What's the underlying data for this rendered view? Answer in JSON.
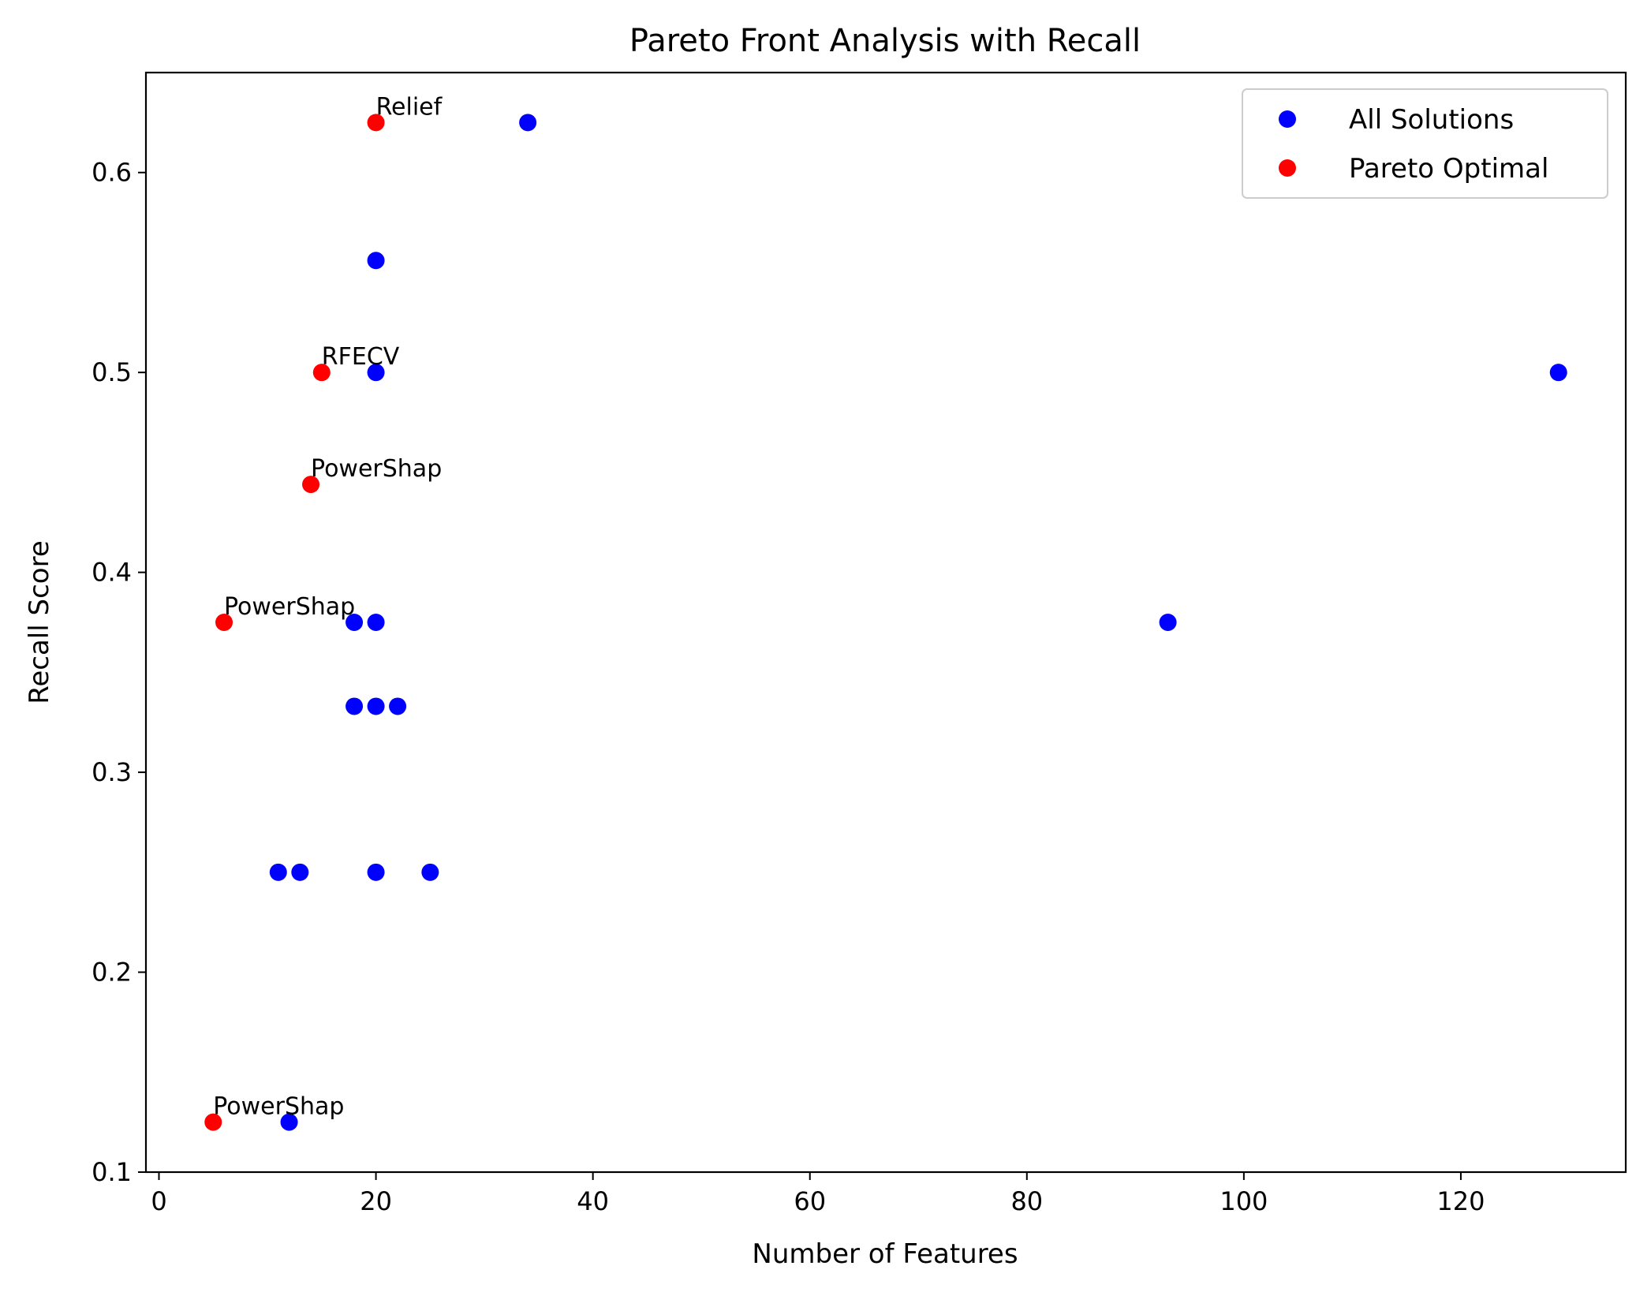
{
  "chart_data": {
    "type": "scatter",
    "title": "Pareto Front Analysis with Recall",
    "xlabel": "Number of Features",
    "ylabel": "Recall Score",
    "xlim": [
      -1.2,
      135.2
    ],
    "ylim": [
      0.1,
      0.65
    ],
    "xticks": [
      {
        "value": 0,
        "label": "0"
      },
      {
        "value": 20,
        "label": "20"
      },
      {
        "value": 40,
        "label": "40"
      },
      {
        "value": 60,
        "label": "60"
      },
      {
        "value": 80,
        "label": "80"
      },
      {
        "value": 100,
        "label": "100"
      },
      {
        "value": 120,
        "label": "120"
      }
    ],
    "yticks": [
      {
        "value": 0.1,
        "label": "0.1"
      },
      {
        "value": 0.2,
        "label": "0.2"
      },
      {
        "value": 0.3,
        "label": "0.3"
      },
      {
        "value": 0.4,
        "label": "0.4"
      },
      {
        "value": 0.5,
        "label": "0.5"
      },
      {
        "value": 0.6,
        "label": "0.6"
      }
    ],
    "grid": false,
    "legend_position": "top-right",
    "series": [
      {
        "name": "All Solutions",
        "color": "#0000ff",
        "points": [
          {
            "x": 34,
            "y": 0.625
          },
          {
            "x": 20,
            "y": 0.556
          },
          {
            "x": 20,
            "y": 0.5
          },
          {
            "x": 129,
            "y": 0.5
          },
          {
            "x": 18,
            "y": 0.375
          },
          {
            "x": 20,
            "y": 0.375
          },
          {
            "x": 93,
            "y": 0.375
          },
          {
            "x": 18,
            "y": 0.333
          },
          {
            "x": 20,
            "y": 0.333
          },
          {
            "x": 22,
            "y": 0.333
          },
          {
            "x": 11,
            "y": 0.25
          },
          {
            "x": 13,
            "y": 0.25
          },
          {
            "x": 20,
            "y": 0.25
          },
          {
            "x": 25,
            "y": 0.25
          },
          {
            "x": 12,
            "y": 0.125
          }
        ]
      },
      {
        "name": "Pareto Optimal",
        "color": "#ff0000",
        "points": [
          {
            "x": 20,
            "y": 0.625,
            "label": "Relief"
          },
          {
            "x": 15,
            "y": 0.5,
            "label": "RFECV"
          },
          {
            "x": 14,
            "y": 0.444,
            "label": "PowerShap"
          },
          {
            "x": 6,
            "y": 0.375,
            "label": "PowerShap"
          },
          {
            "x": 5,
            "y": 0.125,
            "label": "PowerShap"
          }
        ]
      }
    ]
  }
}
